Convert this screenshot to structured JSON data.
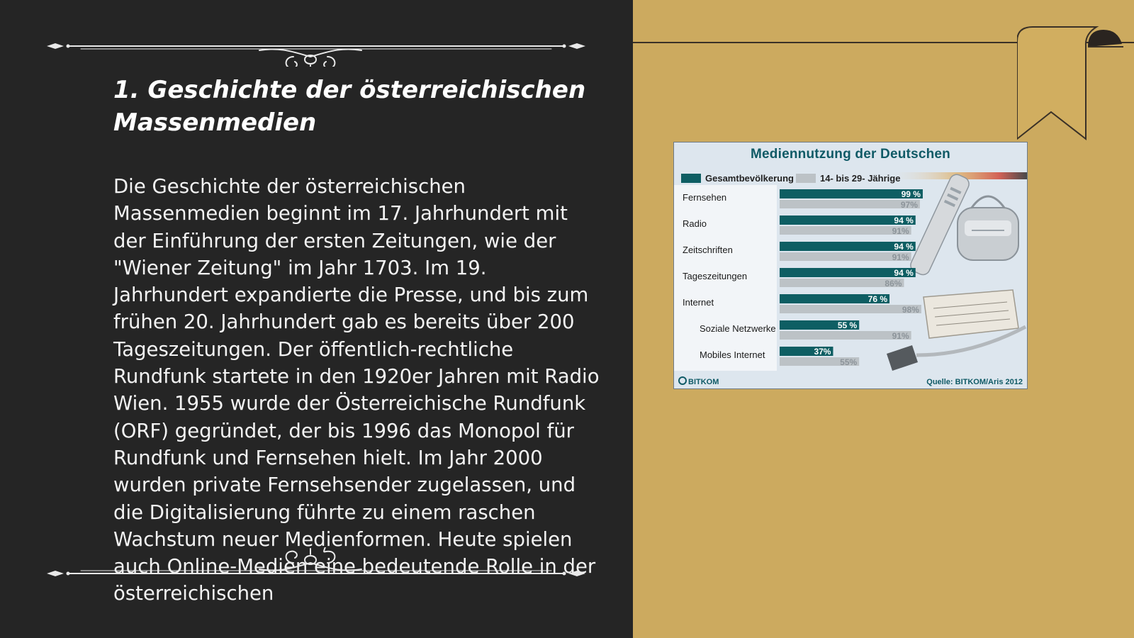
{
  "slide": {
    "title": "1. Geschichte der österreichischen Massenmedien",
    "body": "Die Geschichte der österreichischen Massenmedien beginnt im 17. Jahrhundert mit der Einführung der ersten Zeitungen, wie der \"Wiener Zeitung\" im Jahr 1703. Im 19. Jahrhundert expandierte die Presse, und bis zum frühen 20. Jahrhundert gab es bereits über 200 Tageszeitungen. Der öffentlich-rechtliche Rundfunk startete in den 1920er Jahren mit Radio Wien. 1955 wurde der Österreichische Rundfunk (ORF) gegründet, der bis 1996 das Monopol für Rundfunk und Fernsehen hielt. Im Jahr 2000 wurden private Fernsehsender zugelassen, und die Digitalisierung führte zu einem raschen Wachstum neuer Medienformen. Heute spielen auch Online-Medien eine bedeutende Rolle in der österreichischen"
  },
  "colors": {
    "left_panel": "#252525",
    "right_panel": "#ccaa5f",
    "ornament": "#e9e9e9",
    "bar_primary": "#0e5e63",
    "bar_secondary": "#bcc2c6",
    "chart_title": "#0f5a66"
  },
  "chart_data": {
    "type": "bar",
    "orientation": "horizontal",
    "title": "Mediennutzung der Deutschen",
    "categories": [
      "Fernsehen",
      "Radio",
      "Zeitschriften",
      "Tageszeitungen",
      "Internet",
      "Soziale Netzwerke",
      "Mobiles Internet"
    ],
    "series": [
      {
        "name": "Gesamtbevölkerung",
        "values": [
          99,
          94,
          94,
          94,
          76,
          55,
          37
        ]
      },
      {
        "name": "14- bis 29- Jährige",
        "values": [
          97,
          91,
          91,
          86,
          98,
          91,
          55
        ]
      }
    ],
    "value_labels": {
      "primary": [
        "99 %",
        "94 %",
        "94 %",
        "94 %",
        "76 %",
        "55 %",
        "37%"
      ],
      "secondary": [
        "97%",
        "91%",
        "91%",
        "86%",
        "98%",
        "91%",
        "55%"
      ]
    },
    "xlim": [
      0,
      100
    ],
    "legend_position": "top",
    "logo_text": "BITKOM",
    "source": "Quelle: BITKOM/Aris 2012"
  }
}
